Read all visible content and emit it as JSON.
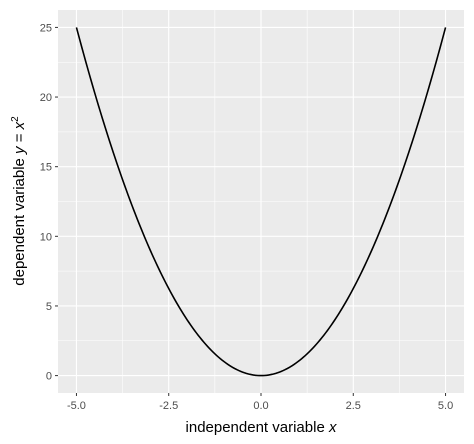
{
  "chart_data": {
    "type": "line",
    "function": "y = x^2",
    "x_range": [
      -5,
      5
    ],
    "xlim": [
      -5.5,
      5.5
    ],
    "ylim": [
      -1.25,
      26.25
    ],
    "x_ticks": [
      -5,
      -2.5,
      0,
      2.5,
      5
    ],
    "x_tick_labels": [
      "-5.0",
      "-2.5",
      "0.0",
      "2.5",
      "5.0"
    ],
    "y_ticks": [
      0,
      5,
      10,
      15,
      20,
      25
    ],
    "y_tick_labels": [
      "0",
      "5",
      "10",
      "15",
      "20",
      "25"
    ],
    "x_minor_ticks": [
      -3.75,
      -1.25,
      1.25,
      3.75
    ],
    "y_minor_ticks": [
      2.5,
      7.5,
      12.5,
      17.5,
      22.5
    ],
    "samples": [
      {
        "x": -5,
        "y": 25
      },
      {
        "x": -4.5,
        "y": 20.25
      },
      {
        "x": -4,
        "y": 16
      },
      {
        "x": -3.5,
        "y": 12.25
      },
      {
        "x": -3,
        "y": 9
      },
      {
        "x": -2.5,
        "y": 6.25
      },
      {
        "x": -2,
        "y": 4
      },
      {
        "x": -1.5,
        "y": 2.25
      },
      {
        "x": -1,
        "y": 1
      },
      {
        "x": -0.5,
        "y": 0.25
      },
      {
        "x": 0,
        "y": 0
      },
      {
        "x": 0.5,
        "y": 0.25
      },
      {
        "x": 1,
        "y": 1
      },
      {
        "x": 1.5,
        "y": 2.25
      },
      {
        "x": 2,
        "y": 4
      },
      {
        "x": 2.5,
        "y": 6.25
      },
      {
        "x": 3,
        "y": 9
      },
      {
        "x": 3.5,
        "y": 12.25
      },
      {
        "x": 4,
        "y": 16
      },
      {
        "x": 4.5,
        "y": 20.25
      },
      {
        "x": 5,
        "y": 25
      }
    ],
    "xlabel": {
      "text": "independent variable ",
      "var": "x"
    },
    "ylabel": {
      "text": "dependent variable ",
      "var": "y",
      "eq": " = ",
      "var2": "x",
      "sup": "2"
    },
    "grid": true,
    "colors": {
      "panel": "#ebebeb",
      "grid": "#ffffff",
      "line": "#000000",
      "tick_text": "#4d4d4d"
    }
  }
}
